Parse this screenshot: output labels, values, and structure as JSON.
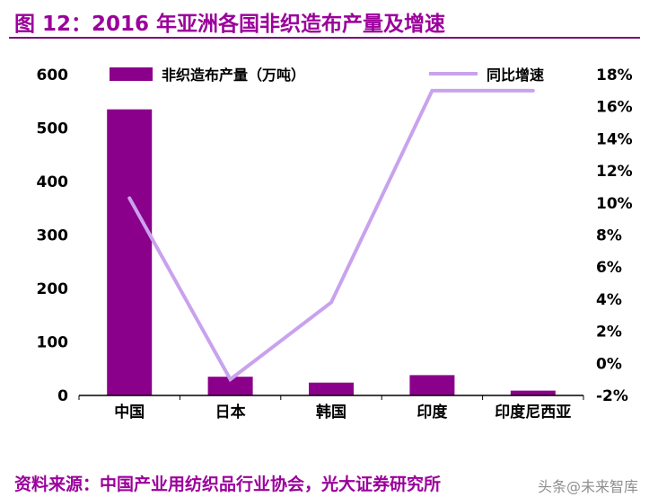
{
  "header": {
    "title": "图 12：2016 年亚洲各国非织造布产量及增速"
  },
  "chart_data": {
    "type": "bar",
    "subtype": "combo-bar-line",
    "title": "2016 年亚洲各国非织造布产量及增速",
    "categories": [
      "中国",
      "日本",
      "韩国",
      "印度",
      "印度尼西亚"
    ],
    "series": [
      {
        "name": "非织造布产量（万吨）",
        "type": "bar",
        "axis": "left",
        "values": [
          535,
          35,
          24,
          38,
          9
        ]
      },
      {
        "name": "同比增速",
        "type": "line",
        "axis": "right",
        "values": [
          10.3,
          -1,
          3.8,
          17,
          17
        ]
      }
    ],
    "left_axis": {
      "min": 0,
      "max": 600,
      "step": 100,
      "ticks": [
        "0",
        "100",
        "200",
        "300",
        "400",
        "500",
        "600"
      ]
    },
    "right_axis": {
      "min": -2,
      "max": 18,
      "step": 2,
      "ticks": [
        "-2%",
        "0%",
        "2%",
        "4%",
        "6%",
        "8%",
        "10%",
        "12%",
        "14%",
        "16%",
        "18%"
      ]
    },
    "legend": {
      "position": "top",
      "entries": [
        "非织造布产量（万吨）",
        "同比增速"
      ]
    },
    "grid": false
  },
  "footer": {
    "source": "资料来源：中国产业用纺织品行业协会，光大证券研究所",
    "watermark": "头条@未来智库"
  },
  "colors": {
    "title": "#9B009B",
    "rule": "#7A0E7A",
    "bar": "#8B008B",
    "line": "#C9A2EE",
    "axis": "#000000",
    "watermark": "#8F8F8F"
  }
}
